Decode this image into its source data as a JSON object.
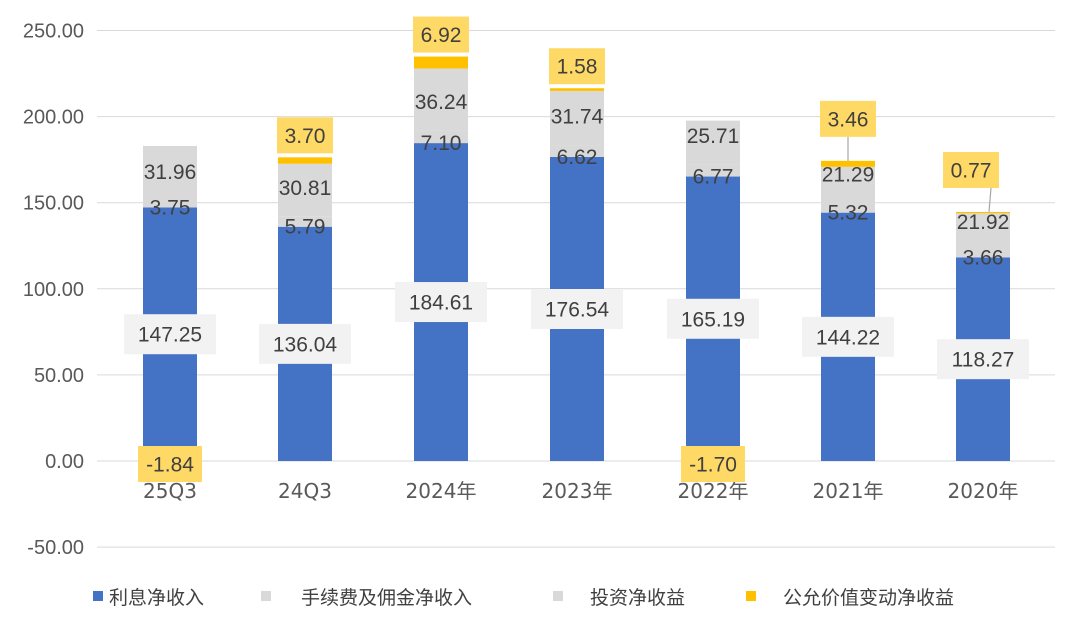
{
  "colors": {
    "interest": "#4472C4",
    "commission": "#D9D9D9",
    "investment": "#D9D9D9",
    "fairvalue": "#FFC000",
    "label_highlight": "#FFD966",
    "label_box": "#F2F2F2",
    "grid": "#D9D9D9"
  },
  "chart_data": {
    "type": "bar",
    "stacked": true,
    "categories": [
      "25Q3",
      "24Q3",
      "2024年",
      "2023年",
      "2022年",
      "2021年",
      "2020年"
    ],
    "series": [
      {
        "name": "利息净收入",
        "values": [
          147.25,
          136.04,
          184.61,
          176.54,
          165.19,
          144.22,
          118.27
        ]
      },
      {
        "name": "手续费及佣金净收入",
        "values": [
          3.75,
          5.79,
          7.1,
          6.62,
          6.77,
          5.32,
          3.66
        ]
      },
      {
        "name": "投资净收益",
        "values": [
          31.96,
          30.81,
          36.24,
          31.74,
          25.71,
          21.29,
          21.92
        ]
      },
      {
        "name": "公允价值变动净收益",
        "values": [
          -1.84,
          3.7,
          6.92,
          1.58,
          -1.7,
          3.46,
          0.77
        ]
      }
    ],
    "data_labels": {
      "interest": [
        "147.25",
        "136.04",
        "184.61",
        "176.54",
        "165.19",
        "144.22",
        "118.27"
      ],
      "commission": [
        "3.75",
        "5.79",
        "7.10",
        "6.62",
        "6.77",
        "5.32",
        "3.66"
      ],
      "investment": [
        "31.96",
        "30.81",
        "36.24",
        "31.74",
        "25.71",
        "21.29",
        "21.92"
      ],
      "fairvalue": [
        "-1.84",
        "3.70",
        "6.92",
        "1.58",
        "-1.70",
        "3.46",
        "0.77"
      ]
    },
    "yticks": [
      "250.00",
      "200.00",
      "150.00",
      "100.00",
      "50.00",
      "0.00",
      "-50.00"
    ],
    "ytick_values": [
      250,
      200,
      150,
      100,
      50,
      0,
      -50
    ],
    "ylim": [
      -50,
      250
    ],
    "grid": true,
    "legend": {
      "placement": "bottom"
    }
  }
}
